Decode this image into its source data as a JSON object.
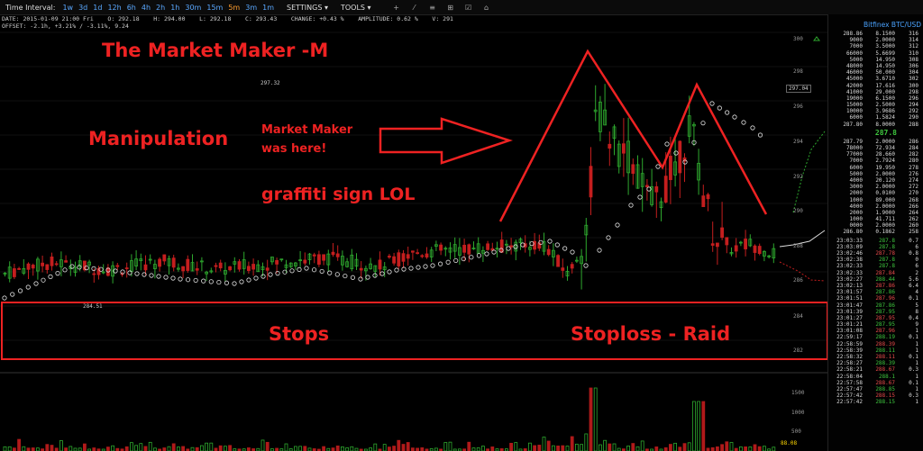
{
  "toolbar": {
    "time_interval_label": "Time Interval:",
    "intervals": [
      "1w",
      "3d",
      "1d",
      "12h",
      "6h",
      "4h",
      "2h",
      "1h",
      "30m",
      "15m",
      "5m",
      "3m",
      "1m"
    ],
    "active_interval": "5m",
    "settings": "SETTINGS ▾",
    "tools": "TOOLS ▾",
    "tool_icons": [
      "+",
      "⁄",
      "≡",
      "⊞",
      "☑",
      "⌂"
    ]
  },
  "info": {
    "line1": "DATE: 2015-01-09 21:00 Fri    O: 292.18    H: 294.00    L: 292.18    C: 293.43    CHANGE: +0.43 %    AMPLITUDE: 0.62 %    V: 291",
    "line2": "OFFSET: -2.1h, +3.21% / -3.11%, 9.24"
  },
  "annotations": {
    "title": "The Market Maker -M",
    "manipulation": "Manipulation",
    "mm_line1": "Market Maker",
    "mm_line2": "was here!",
    "graffiti": "graffiti sign LOL",
    "stops": "Stops",
    "raid": "Stoploss - Raid"
  },
  "chart_labels": {
    "high_marker": "297.32",
    "low_marker": "284.51",
    "price_tag": "297.04",
    "vol_marker": "88.08"
  },
  "price_axis": [
    "300",
    "298",
    "296",
    "294",
    "292",
    "290",
    "288",
    "286",
    "284",
    "282"
  ],
  "volume_axis": [
    "1500",
    "1000",
    "500"
  ],
  "orderbook": {
    "title": "Bitfinex BTC/USD",
    "asks": [
      [
        "288.86",
        "8.1500",
        "316"
      ],
      [
        "9000",
        "2.0000",
        "314"
      ],
      [
        "7000",
        "3.5000",
        "312"
      ],
      [
        "66000",
        "5.6699",
        "310"
      ],
      [
        "5000",
        "14.950",
        "308"
      ],
      [
        "48000",
        "14.950",
        "306"
      ],
      [
        "46000",
        "50.000",
        "304"
      ],
      [
        "45000",
        "3.6710",
        "302"
      ],
      [
        "42000",
        "17.616",
        "300"
      ],
      [
        "41000",
        "29.000",
        "298"
      ],
      [
        "19000",
        "6.1500",
        "296"
      ],
      [
        "15000",
        "2.5000",
        "294"
      ],
      [
        "10000",
        "3.9686",
        "292"
      ],
      [
        "6000",
        "1.5824",
        "290"
      ],
      [
        "287.80",
        "8.0000",
        "288"
      ]
    ],
    "mid": "287.8",
    "bids": [
      [
        "287.79",
        "2.0000",
        "286"
      ],
      [
        "78000",
        "72.934",
        "284"
      ],
      [
        "77000",
        "28.660",
        "282"
      ],
      [
        "7000",
        "2.7924",
        "280"
      ],
      [
        "6000",
        "19.950",
        "278"
      ],
      [
        "5000",
        "2.0000",
        "276"
      ],
      [
        "4000",
        "20.120",
        "274"
      ],
      [
        "3000",
        "2.0000",
        "272"
      ],
      [
        "2000",
        "0.0100",
        "270"
      ],
      [
        "1000",
        "89.000",
        "268"
      ],
      [
        "4000",
        "2.0000",
        "266"
      ],
      [
        "2000",
        "1.9000",
        "264"
      ],
      [
        "1000",
        "41.711",
        "262"
      ],
      [
        "0000",
        "2.0000",
        "260"
      ],
      [
        "286.80",
        "0.1862",
        "258"
      ]
    ],
    "trades": [
      [
        "23:03:33",
        "287.8",
        "0.7",
        "g"
      ],
      [
        "23:03:09",
        "287.8",
        "6",
        "g"
      ],
      [
        "23:02:46",
        "287.78",
        "0.8",
        "r"
      ],
      [
        "23:02:38",
        "287.8",
        "0",
        "g"
      ],
      [
        "23:02:33",
        "287.8",
        "6",
        "g"
      ],
      [
        "23:02:33",
        "287.84",
        "2",
        "r"
      ],
      [
        "23:02:27",
        "288.44",
        "5.6",
        "g"
      ],
      [
        "23:02:13",
        "287.86",
        "6.4",
        "r"
      ],
      [
        "23:01:57",
        "287.86",
        "4",
        "g"
      ],
      [
        "23:01:51",
        "287.96",
        "0.1",
        "r"
      ],
      [
        "23:01:47",
        "287.86",
        "5",
        "g"
      ],
      [
        "23:01:39",
        "287.95",
        "8",
        "g"
      ],
      [
        "23:01:27",
        "287.95",
        "0.4",
        "r"
      ],
      [
        "23:01:21",
        "287.95",
        "9",
        "g"
      ],
      [
        "23:01:08",
        "287.96",
        "1",
        "r"
      ],
      [
        "22:59:17",
        "288.19",
        "0.1",
        "g"
      ],
      [
        "22:58:59",
        "288.39",
        "1",
        "r"
      ],
      [
        "22:58:39",
        "288.11",
        "1",
        "g"
      ],
      [
        "22:58:32",
        "288.11",
        "0.1",
        "r"
      ],
      [
        "22:58:27",
        "288.39",
        "1",
        "g"
      ],
      [
        "22:58:21",
        "288.67",
        "0.3",
        "r"
      ],
      [
        "22:58:04",
        "288.1",
        "1",
        "g"
      ],
      [
        "22:57:58",
        "288.67",
        "0.1",
        "r"
      ],
      [
        "22:57:47",
        "288.85",
        "1",
        "g"
      ],
      [
        "22:57:42",
        "288.15",
        "0.3",
        "r"
      ],
      [
        "22:57:42",
        "288.15",
        "1",
        "g"
      ]
    ]
  }
}
